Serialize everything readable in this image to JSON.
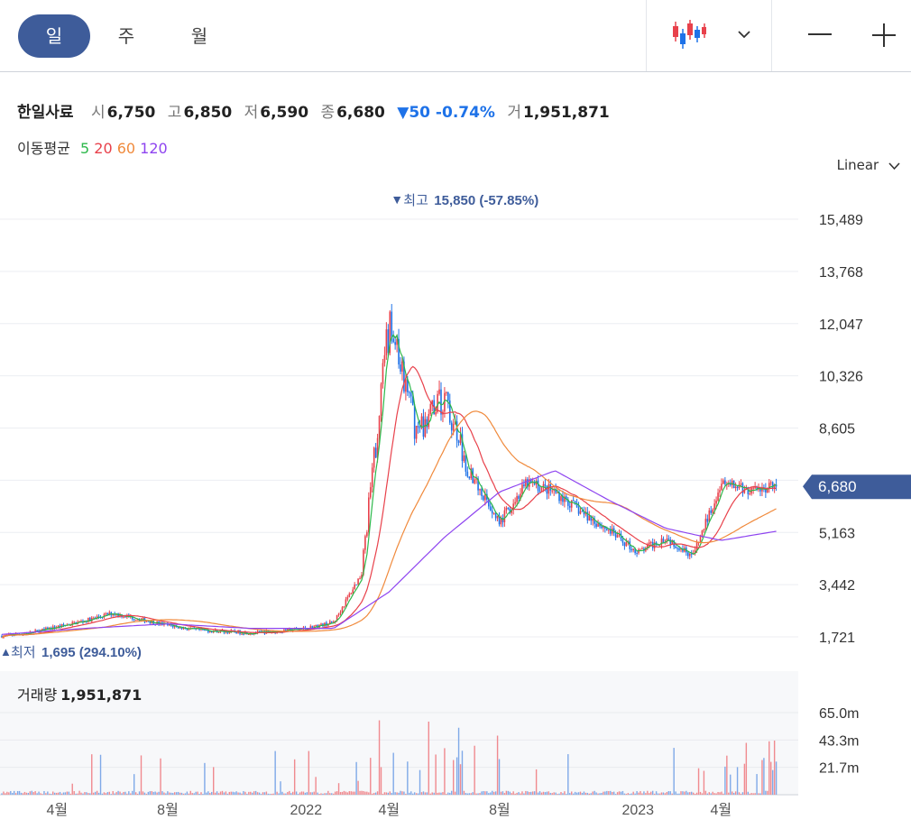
{
  "toolbar": {
    "periods": [
      {
        "label": "일",
        "active": true
      },
      {
        "label": "주",
        "active": false
      },
      {
        "label": "월",
        "active": false
      }
    ]
  },
  "summary": {
    "name": "한일사료",
    "open_label": "시",
    "open": "6,750",
    "high_label": "고",
    "high": "6,850",
    "low_label": "저",
    "low": "6,590",
    "close_label": "종",
    "close": "6,680",
    "change": "▼50 -0.74%",
    "volume_label": "거",
    "volume": "1,951,871"
  },
  "moving_average": {
    "title": "이동평균",
    "periods": [
      {
        "label": "5",
        "color": "#2db84b"
      },
      {
        "label": "20",
        "color": "#e8414b"
      },
      {
        "label": "60",
        "color": "#f08a3c"
      },
      {
        "label": "120",
        "color": "#8e44f0"
      }
    ]
  },
  "scale_mode": "Linear",
  "colors": {
    "up": "#e8414b",
    "down": "#1e72e8",
    "accent": "#3e5c9a"
  },
  "chart_data": {
    "type": "candlestick",
    "y_ticks": [
      "15,489",
      "13,768",
      "12,047",
      "10,326",
      "8,605",
      "5,163",
      "3,442",
      "1,721"
    ],
    "y_tick_values": [
      15489,
      13768,
      12047,
      10326,
      8605,
      5163,
      3442,
      1721
    ],
    "hidden_tick_value": 6884,
    "ylim": [
      1721,
      15489
    ],
    "x_labels": [
      "4월",
      "8월",
      "2022",
      "4월",
      "8월",
      "2023",
      "4월"
    ],
    "x_label_dates": [
      "2021-04",
      "2021-08",
      "2022-01",
      "2022-04",
      "2022-08",
      "2023-01",
      "2023-04"
    ],
    "x_range": [
      "2021-02",
      "2023-06"
    ],
    "current_price": "6,680",
    "current_value": 6680,
    "high_marker": {
      "label": "최고",
      "text": "15,850 (-57.85%)",
      "value": 15850,
      "date": "2022-04"
    },
    "low_marker": {
      "label": "최저",
      "text": "1,695 (294.10%)",
      "value": 1695,
      "date": "2021-02"
    },
    "close_series": [
      {
        "date": "2021-02",
        "value": 1750
      },
      {
        "date": "2021-03",
        "value": 1850
      },
      {
        "date": "2021-04",
        "value": 2050
      },
      {
        "date": "2021-05",
        "value": 2250
      },
      {
        "date": "2021-06",
        "value": 2500
      },
      {
        "date": "2021-07",
        "value": 2300
      },
      {
        "date": "2021-08",
        "value": 2100
      },
      {
        "date": "2021-09",
        "value": 1950
      },
      {
        "date": "2021-10",
        "value": 1900
      },
      {
        "date": "2021-11",
        "value": 1850
      },
      {
        "date": "2021-12",
        "value": 1900
      },
      {
        "date": "2022-01",
        "value": 2000
      },
      {
        "date": "2022-02",
        "value": 2200
      },
      {
        "date": "2022-03",
        "value": 3800
      },
      {
        "date": "2022-04",
        "value": 12000
      },
      {
        "date": "2022-05",
        "value": 8500
      },
      {
        "date": "2022-06",
        "value": 9500
      },
      {
        "date": "2022-07",
        "value": 7000
      },
      {
        "date": "2022-08",
        "value": 5500
      },
      {
        "date": "2022-09",
        "value": 6800
      },
      {
        "date": "2022-10",
        "value": 6500
      },
      {
        "date": "2022-11",
        "value": 5800
      },
      {
        "date": "2022-12",
        "value": 5200
      },
      {
        "date": "2023-01",
        "value": 4500
      },
      {
        "date": "2023-02",
        "value": 5000
      },
      {
        "date": "2023-03",
        "value": 4400
      },
      {
        "date": "2023-04",
        "value": 6800
      },
      {
        "date": "2023-05",
        "value": 6500
      },
      {
        "date": "2023-06",
        "value": 6680
      }
    ],
    "ma120_series": [
      {
        "date": "2021-02",
        "value": 1800
      },
      {
        "date": "2021-05",
        "value": 2000
      },
      {
        "date": "2021-08",
        "value": 2150
      },
      {
        "date": "2021-11",
        "value": 2000
      },
      {
        "date": "2022-02",
        "value": 2000
      },
      {
        "date": "2022-04",
        "value": 3200
      },
      {
        "date": "2022-06",
        "value": 5000
      },
      {
        "date": "2022-08",
        "value": 6500
      },
      {
        "date": "2022-10",
        "value": 7200
      },
      {
        "date": "2022-12",
        "value": 6200
      },
      {
        "date": "2023-02",
        "value": 5300
      },
      {
        "date": "2023-04",
        "value": 4900
      },
      {
        "date": "2023-06",
        "value": 5200
      }
    ],
    "volume": {
      "title": "거래량",
      "value": "1,951,871",
      "y_ticks": [
        "65.0m",
        "43.3m",
        "21.7m"
      ],
      "y_tick_values": [
        65.0,
        43.3,
        21.7
      ],
      "unit": "m"
    }
  }
}
